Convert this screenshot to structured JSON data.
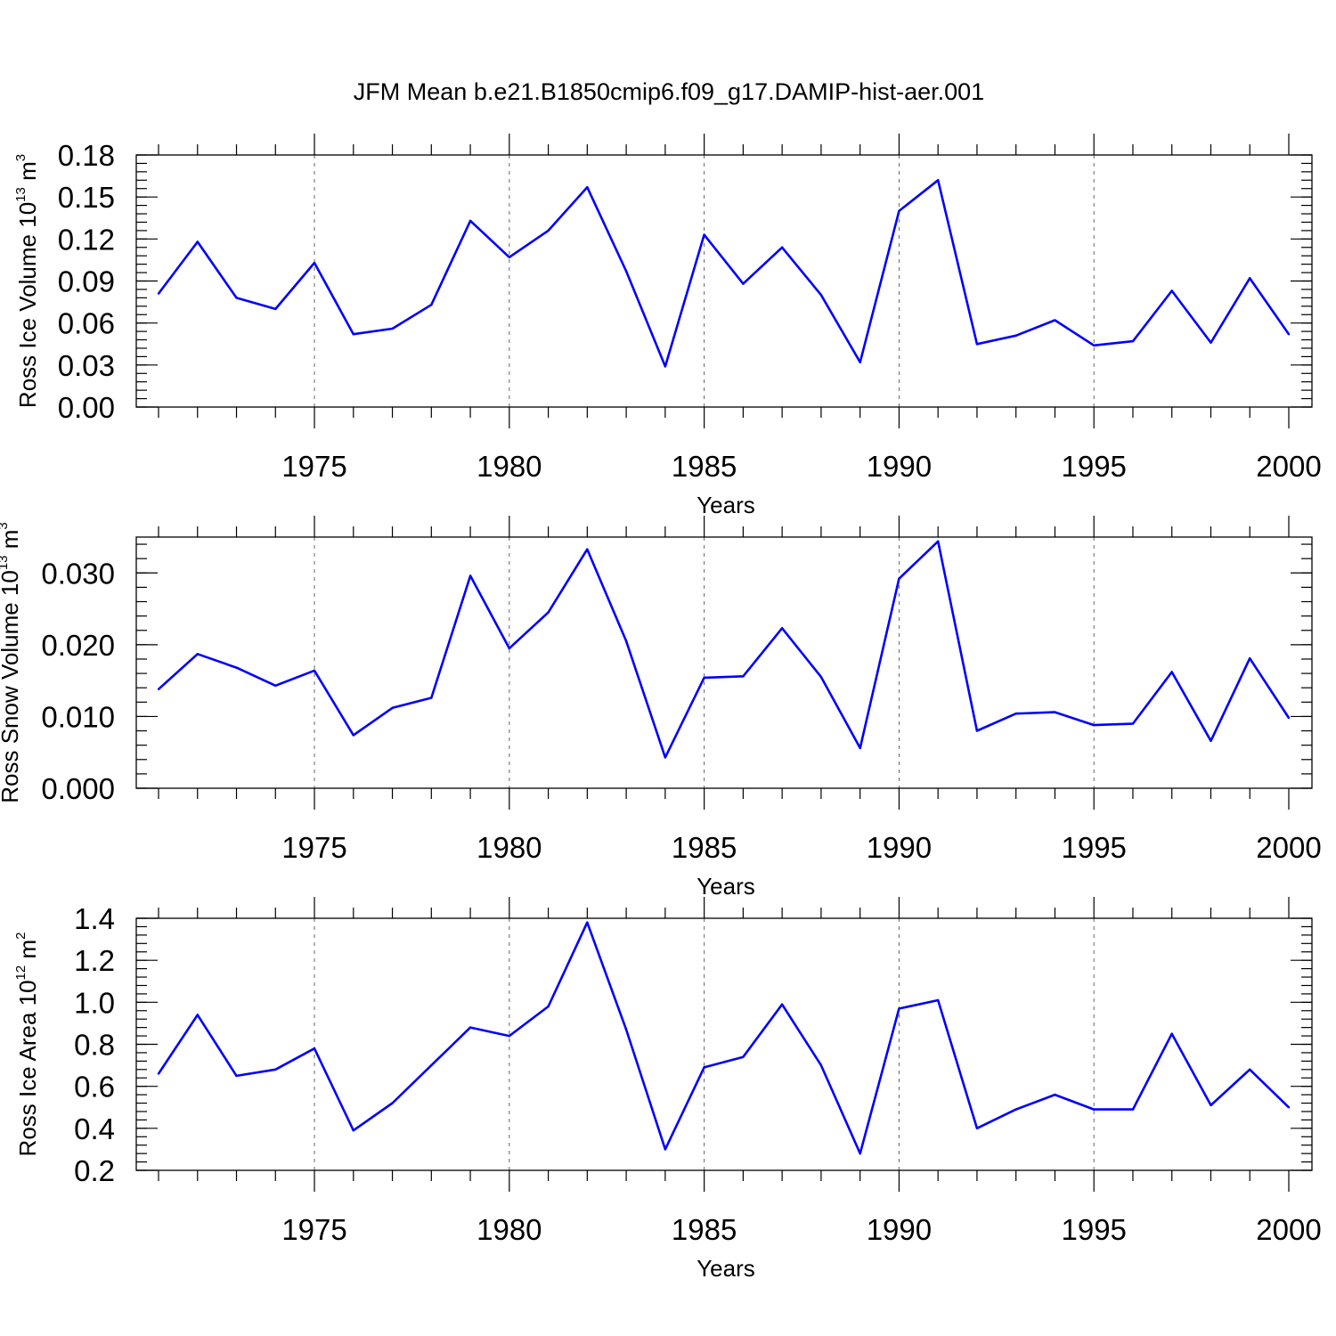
{
  "title": "JFM Mean b.e21.B1850cmip6.f09_g17.DAMIP-hist-aer.001",
  "colors": {
    "series": "#0000ff",
    "frame": "#000000",
    "grid": "#666666"
  },
  "chart_data": [
    {
      "type": "line",
      "ylabel": {
        "text": "Ross Ice Volume 10",
        "exp": "13",
        "unit": " m",
        "unit_exp": "3"
      },
      "xlabel": "Years",
      "xlim": [
        1971,
        2000
      ],
      "ylim": [
        0,
        0.18
      ],
      "yticks": [
        "0.00",
        "0.03",
        "0.06",
        "0.09",
        "0.12",
        "0.15",
        "0.18"
      ],
      "xticks": [
        "1975",
        "1980",
        "1985",
        "1990",
        "1995",
        "2000"
      ],
      "grid_x": "dashed",
      "x": [
        1971,
        1972,
        1973,
        1974,
        1975,
        1976,
        1977,
        1978,
        1979,
        1980,
        1981,
        1982,
        1983,
        1984,
        1985,
        1986,
        1987,
        1988,
        1989,
        1990,
        1991,
        1992,
        1993,
        1994,
        1995,
        1996,
        1997,
        1998,
        1999,
        2000
      ],
      "values": [
        0.081,
        0.118,
        0.078,
        0.07,
        0.103,
        0.052,
        0.056,
        0.073,
        0.133,
        0.107,
        0.126,
        0.157,
        0.097,
        0.029,
        0.123,
        0.088,
        0.114,
        0.08,
        0.032,
        0.14,
        0.162,
        0.045,
        0.051,
        0.062,
        0.044,
        0.047,
        0.083,
        0.046,
        0.092,
        0.052
      ]
    },
    {
      "type": "line",
      "ylabel": {
        "text": "Ross Snow Volume 10",
        "exp": "13",
        "unit": " m",
        "unit_exp": "3"
      },
      "xlabel": "Years",
      "xlim": [
        1971,
        2000
      ],
      "ylim": [
        0,
        0.035
      ],
      "yticks": [
        "0.000",
        "0.010",
        "0.020",
        "0.030"
      ],
      "xticks": [
        "1975",
        "1980",
        "1985",
        "1990",
        "1995",
        "2000"
      ],
      "grid_x": "dashed",
      "x": [
        1971,
        1972,
        1973,
        1974,
        1975,
        1976,
        1977,
        1978,
        1979,
        1980,
        1981,
        1982,
        1983,
        1984,
        1985,
        1986,
        1987,
        1988,
        1989,
        1990,
        1991,
        1992,
        1993,
        1994,
        1995,
        1996,
        1997,
        1998,
        1999,
        2000
      ],
      "values": [
        0.0138,
        0.0187,
        0.0168,
        0.0143,
        0.0164,
        0.0074,
        0.0112,
        0.0126,
        0.0296,
        0.0195,
        0.0245,
        0.0333,
        0.0205,
        0.0043,
        0.0154,
        0.0156,
        0.0223,
        0.0155,
        0.0056,
        0.0292,
        0.0344,
        0.008,
        0.0104,
        0.0106,
        0.0088,
        0.009,
        0.0162,
        0.0066,
        0.0181,
        0.0098
      ]
    },
    {
      "type": "line",
      "ylabel": {
        "text": "Ross Ice Area 10",
        "exp": "12",
        "unit": " m",
        "unit_exp": "2"
      },
      "xlabel": "Years",
      "xlim": [
        1971,
        2000
      ],
      "ylim": [
        0.2,
        1.4
      ],
      "yticks": [
        "0.2",
        "0.4",
        "0.6",
        "0.8",
        "1.0",
        "1.2",
        "1.4"
      ],
      "xticks": [
        "1975",
        "1980",
        "1985",
        "1990",
        "1995",
        "2000"
      ],
      "grid_x": "dashed",
      "x": [
        1971,
        1972,
        1973,
        1974,
        1975,
        1976,
        1977,
        1978,
        1979,
        1980,
        1981,
        1982,
        1983,
        1984,
        1985,
        1986,
        1987,
        1988,
        1989,
        1990,
        1991,
        1992,
        1993,
        1994,
        1995,
        1996,
        1997,
        1998,
        1999,
        2000
      ],
      "values": [
        0.66,
        0.94,
        0.65,
        0.68,
        0.78,
        0.39,
        0.52,
        0.7,
        0.88,
        0.84,
        0.98,
        1.38,
        0.87,
        0.3,
        0.69,
        0.74,
        0.99,
        0.7,
        0.28,
        0.97,
        1.01,
        0.4,
        0.49,
        0.56,
        0.49,
        0.49,
        0.85,
        0.51,
        0.68,
        0.5
      ]
    }
  ]
}
